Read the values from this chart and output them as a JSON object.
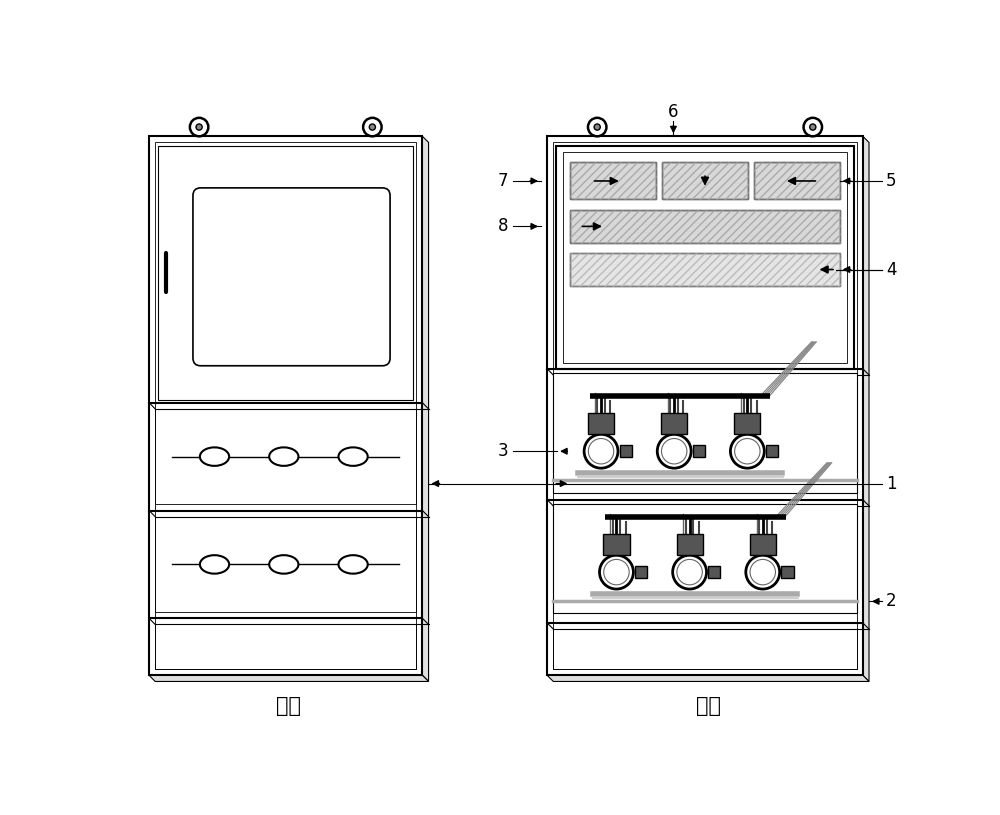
{
  "bg_color": "#ffffff",
  "lc": "#000000",
  "gray_fill": "#cccccc",
  "light_gray": "#d8d8d8",
  "mid_gray": "#999999",
  "dark_gray": "#555555",
  "figw": 10.0,
  "figh": 8.15,
  "dpi": 100
}
